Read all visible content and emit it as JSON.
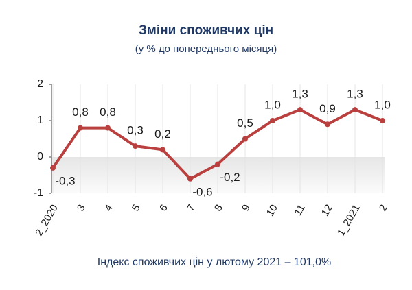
{
  "chart_data": {
    "type": "line",
    "title": "Зміни споживчих цін",
    "subtitle": "(у % до попереднього місяця)",
    "footer": "Індекс споживчих цін у лютому 2021 – 101,0%",
    "categories": [
      "2_2020",
      "3",
      "4",
      "5",
      "6",
      "7",
      "8",
      "9",
      "10",
      "11",
      "12",
      "1_2021",
      "2"
    ],
    "values": [
      -0.3,
      0.8,
      0.8,
      0.3,
      0.2,
      -0.6,
      -0.2,
      0.5,
      1.0,
      1.3,
      0.9,
      1.3,
      1.0
    ],
    "value_labels": [
      "-0,3",
      "0,8",
      "0,8",
      "0,3",
      "0,2",
      "-0,6",
      "-0,2",
      "0,5",
      "1,0",
      "1,3",
      "0,9",
      "1,3",
      "1,0"
    ],
    "color": "#b9403e",
    "ylim": [
      -1,
      2
    ],
    "yticks": [
      2,
      1,
      0,
      -1
    ]
  }
}
